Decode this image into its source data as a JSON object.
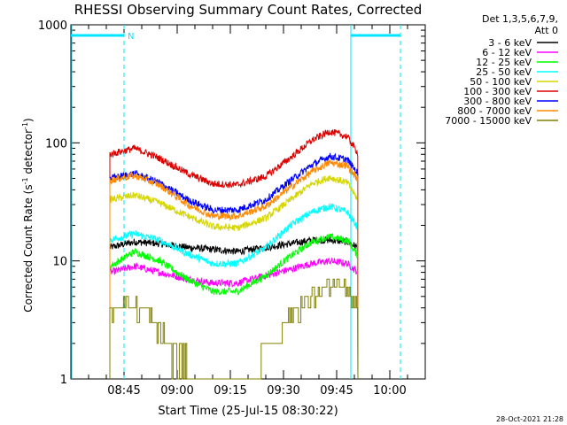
{
  "chart_data": {
    "type": "line",
    "title": "RHESSI Observing Summary Count Rates, Corrected",
    "xlabel": "Start Time (25-Jul-15 08:30:22)",
    "ylabel": "Corrected Count Rate (s",
    "ylabel_sup1": "-1",
    "ylabel_mid": " detector",
    "ylabel_sup2": "-1",
    "ylabel_end": ")",
    "yscale": "log",
    "ylim": [
      1,
      1000
    ],
    "xlim_minutes": [
      0,
      100
    ],
    "x_ticks": [
      {
        "t": 15,
        "label": "08:45"
      },
      {
        "t": 30,
        "label": "09:00"
      },
      {
        "t": 45,
        "label": "09:15"
      },
      {
        "t": 60,
        "label": "09:30"
      },
      {
        "t": 75,
        "label": "09:45"
      },
      {
        "t": 90,
        "label": "10:00"
      }
    ],
    "y_ticks": [
      {
        "v": 1,
        "label": "1"
      },
      {
        "v": 10,
        "label": "10"
      },
      {
        "v": 100,
        "label": "100"
      },
      {
        "v": 1000,
        "label": "1000"
      }
    ],
    "timestamp": "28-Oct-2021 21:28",
    "legend": {
      "header": [
        "Det 1,3,5,6,7,9,",
        "Att 0"
      ]
    },
    "annotations": {
      "night_marker": "N",
      "segments": [
        {
          "kind": "night",
          "start": 0,
          "end": 15
        },
        {
          "kind": "night",
          "start": 79,
          "end": 93
        }
      ],
      "cyan_dashed_lines": [
        15,
        93
      ],
      "cyan_solid_lines": [
        79
      ],
      "data_window": [
        11,
        81
      ]
    },
    "series": [
      {
        "name": "3 - 6 keV",
        "color": "#000000",
        "values": [
          {
            "x": 11,
            "y": 13
          },
          {
            "x": 18,
            "y": 14.5
          },
          {
            "x": 25,
            "y": 14
          },
          {
            "x": 33,
            "y": 13
          },
          {
            "x": 40,
            "y": 12.5
          },
          {
            "x": 47,
            "y": 12
          },
          {
            "x": 55,
            "y": 13
          },
          {
            "x": 62,
            "y": 14
          },
          {
            "x": 68,
            "y": 15
          },
          {
            "x": 73,
            "y": 15
          },
          {
            "x": 78,
            "y": 14.5
          },
          {
            "x": 81,
            "y": 13
          }
        ]
      },
      {
        "name": "6 - 12 keV",
        "color": "#ff00ff",
        "values": [
          {
            "x": 11,
            "y": 8
          },
          {
            "x": 18,
            "y": 9
          },
          {
            "x": 25,
            "y": 8
          },
          {
            "x": 33,
            "y": 7
          },
          {
            "x": 40,
            "y": 6.5
          },
          {
            "x": 47,
            "y": 6.5
          },
          {
            "x": 55,
            "y": 7.5
          },
          {
            "x": 62,
            "y": 8.5
          },
          {
            "x": 68,
            "y": 9.5
          },
          {
            "x": 73,
            "y": 10
          },
          {
            "x": 78,
            "y": 9.5
          },
          {
            "x": 81,
            "y": 8
          }
        ]
      },
      {
        "name": "12 - 25 keV",
        "color": "#00ff00",
        "values": [
          {
            "x": 11,
            "y": 9
          },
          {
            "x": 18,
            "y": 12
          },
          {
            "x": 25,
            "y": 10
          },
          {
            "x": 33,
            "y": 7
          },
          {
            "x": 40,
            "y": 5.5
          },
          {
            "x": 47,
            "y": 5.5
          },
          {
            "x": 55,
            "y": 7.5
          },
          {
            "x": 62,
            "y": 11
          },
          {
            "x": 68,
            "y": 14.5
          },
          {
            "x": 73,
            "y": 16
          },
          {
            "x": 78,
            "y": 15
          },
          {
            "x": 81,
            "y": 11
          }
        ]
      },
      {
        "name": "25 - 50 keV",
        "color": "#00ffff",
        "values": [
          {
            "x": 11,
            "y": 15
          },
          {
            "x": 18,
            "y": 17
          },
          {
            "x": 25,
            "y": 15
          },
          {
            "x": 33,
            "y": 11.5
          },
          {
            "x": 40,
            "y": 9.5
          },
          {
            "x": 47,
            "y": 9.5
          },
          {
            "x": 55,
            "y": 13
          },
          {
            "x": 62,
            "y": 20
          },
          {
            "x": 68,
            "y": 26
          },
          {
            "x": 73,
            "y": 29
          },
          {
            "x": 78,
            "y": 26
          },
          {
            "x": 81,
            "y": 19
          }
        ]
      },
      {
        "name": "50 - 100 keV",
        "color": "#d6d600",
        "values": [
          {
            "x": 11,
            "y": 33
          },
          {
            "x": 18,
            "y": 36
          },
          {
            "x": 25,
            "y": 31
          },
          {
            "x": 33,
            "y": 24
          },
          {
            "x": 40,
            "y": 19.5
          },
          {
            "x": 47,
            "y": 19
          },
          {
            "x": 55,
            "y": 23
          },
          {
            "x": 62,
            "y": 33
          },
          {
            "x": 68,
            "y": 45
          },
          {
            "x": 73,
            "y": 51
          },
          {
            "x": 78,
            "y": 46
          },
          {
            "x": 81,
            "y": 33
          }
        ]
      },
      {
        "name": "100 - 300 keV",
        "color": "#dd0000",
        "values": [
          {
            "x": 11,
            "y": 80
          },
          {
            "x": 18,
            "y": 90
          },
          {
            "x": 25,
            "y": 74
          },
          {
            "x": 33,
            "y": 55
          },
          {
            "x": 40,
            "y": 45
          },
          {
            "x": 47,
            "y": 44
          },
          {
            "x": 55,
            "y": 52
          },
          {
            "x": 62,
            "y": 75
          },
          {
            "x": 68,
            "y": 105
          },
          {
            "x": 73,
            "y": 125
          },
          {
            "x": 78,
            "y": 113
          },
          {
            "x": 81,
            "y": 82
          }
        ]
      },
      {
        "name": "300 - 800 keV",
        "color": "#0000ff",
        "values": [
          {
            "x": 11,
            "y": 50
          },
          {
            "x": 18,
            "y": 55
          },
          {
            "x": 25,
            "y": 46
          },
          {
            "x": 33,
            "y": 33
          },
          {
            "x": 40,
            "y": 27
          },
          {
            "x": 47,
            "y": 27
          },
          {
            "x": 55,
            "y": 33
          },
          {
            "x": 62,
            "y": 48
          },
          {
            "x": 68,
            "y": 65
          },
          {
            "x": 73,
            "y": 77
          },
          {
            "x": 78,
            "y": 72
          },
          {
            "x": 81,
            "y": 55
          }
        ]
      },
      {
        "name": "800 - 7000 keV",
        "color": "#ff8800",
        "values": [
          {
            "x": 11,
            "y": 48
          },
          {
            "x": 18,
            "y": 53
          },
          {
            "x": 25,
            "y": 44
          },
          {
            "x": 33,
            "y": 30
          },
          {
            "x": 40,
            "y": 24
          },
          {
            "x": 47,
            "y": 24
          },
          {
            "x": 55,
            "y": 29
          },
          {
            "x": 62,
            "y": 42
          },
          {
            "x": 68,
            "y": 57
          },
          {
            "x": 73,
            "y": 68
          },
          {
            "x": 78,
            "y": 64
          },
          {
            "x": 81,
            "y": 49
          }
        ]
      },
      {
        "name": "7000 - 15000 keV",
        "color": "#808000",
        "values": [
          {
            "x": 11,
            "y": 3.5
          },
          {
            "x": 14,
            "y": 4.5
          },
          {
            "x": 20,
            "y": 4
          },
          {
            "x": 25,
            "y": 2.5
          },
          {
            "x": 30,
            "y": 1.5
          },
          {
            "x": 35,
            "y": 1.1
          },
          {
            "x": 40,
            "y": 1
          },
          {
            "x": 47,
            "y": 1
          },
          {
            "x": 52,
            "y": 1.3
          },
          {
            "x": 58,
            "y": 2.5
          },
          {
            "x": 64,
            "y": 4
          },
          {
            "x": 70,
            "y": 5.5
          },
          {
            "x": 74,
            "y": 6.5
          },
          {
            "x": 78,
            "y": 5.5
          },
          {
            "x": 81,
            "y": 3.5
          }
        ]
      }
    ]
  }
}
